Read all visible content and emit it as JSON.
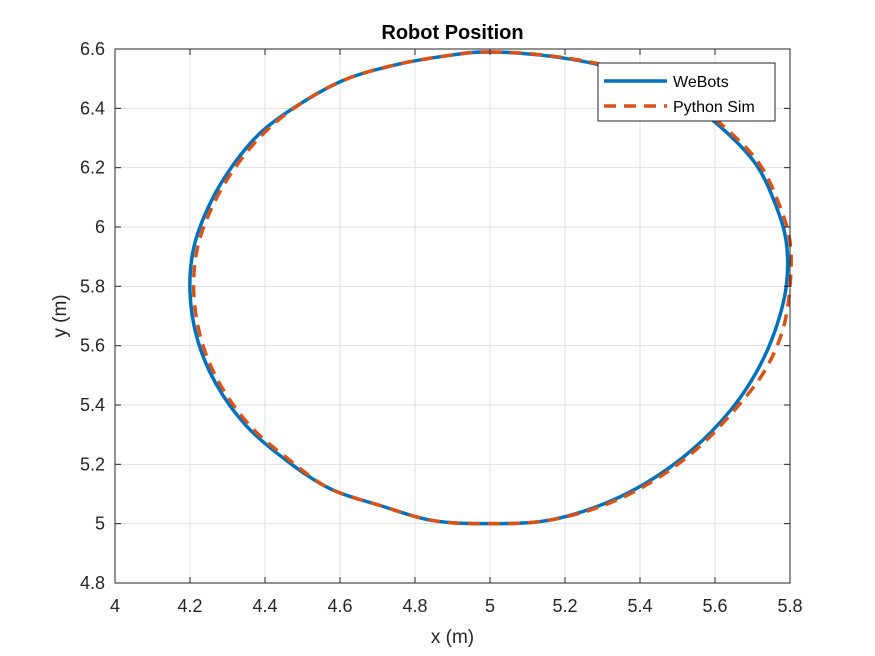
{
  "chart_data": {
    "type": "line",
    "title": "Robot Position",
    "xlabel": "x (m)",
    "ylabel": "y (m)",
    "xlim": [
      4,
      5.8
    ],
    "ylim": [
      4.8,
      6.6
    ],
    "xticks": [
      "4",
      "4.2",
      "4.4",
      "4.6",
      "4.8",
      "5",
      "5.2",
      "5.4",
      "5.6",
      "5.8"
    ],
    "yticks": [
      "4.8",
      "5",
      "5.2",
      "5.4",
      "5.6",
      "5.8",
      "6",
      "6.2",
      "6.4",
      "6.6"
    ],
    "grid": true,
    "legend_position": "top-right",
    "series": [
      {
        "name": "WeBots",
        "color": "#0072BD",
        "style": "solid",
        "x": [
          4.99,
          5.13,
          5.28,
          5.41,
          5.53,
          5.63,
          5.71,
          5.76,
          5.79,
          5.79,
          5.76,
          5.71,
          5.64,
          5.54,
          5.42,
          5.29,
          5.15,
          5.0,
          4.85,
          4.71,
          4.57,
          4.45,
          4.35,
          4.27,
          4.22,
          4.2,
          4.21,
          4.25,
          4.31,
          4.39,
          4.5,
          4.62,
          4.76,
          4.9,
          4.99
        ],
        "y": [
          6.59,
          6.58,
          6.55,
          6.5,
          6.42,
          6.32,
          6.21,
          6.08,
          5.95,
          5.8,
          5.65,
          5.51,
          5.38,
          5.25,
          5.14,
          5.06,
          5.01,
          5.0,
          5.01,
          5.06,
          5.12,
          5.22,
          5.33,
          5.47,
          5.62,
          5.78,
          5.93,
          6.07,
          6.2,
          6.32,
          6.42,
          6.5,
          6.55,
          6.58,
          6.59
        ]
      },
      {
        "name": "Python Sim",
        "color": "#D95319",
        "style": "dashed",
        "x": [
          5.0,
          5.14,
          5.29,
          5.42,
          5.54,
          5.64,
          5.72,
          5.77,
          5.8,
          5.8,
          5.78,
          5.73,
          5.65,
          5.55,
          5.43,
          5.3,
          5.15,
          5.0,
          4.85,
          4.71,
          4.57,
          4.46,
          4.36,
          4.28,
          4.23,
          4.21,
          4.22,
          4.26,
          4.32,
          4.4,
          4.5,
          4.62,
          4.76,
          4.9,
          5.0
        ],
        "y": [
          6.59,
          6.58,
          6.55,
          6.5,
          6.42,
          6.32,
          6.21,
          6.08,
          5.95,
          5.8,
          5.65,
          5.51,
          5.38,
          5.25,
          5.14,
          5.06,
          5.01,
          5.0,
          5.01,
          5.06,
          5.12,
          5.22,
          5.33,
          5.47,
          5.62,
          5.78,
          5.93,
          6.07,
          6.2,
          6.32,
          6.42,
          6.5,
          6.55,
          6.58,
          6.59
        ]
      }
    ]
  }
}
